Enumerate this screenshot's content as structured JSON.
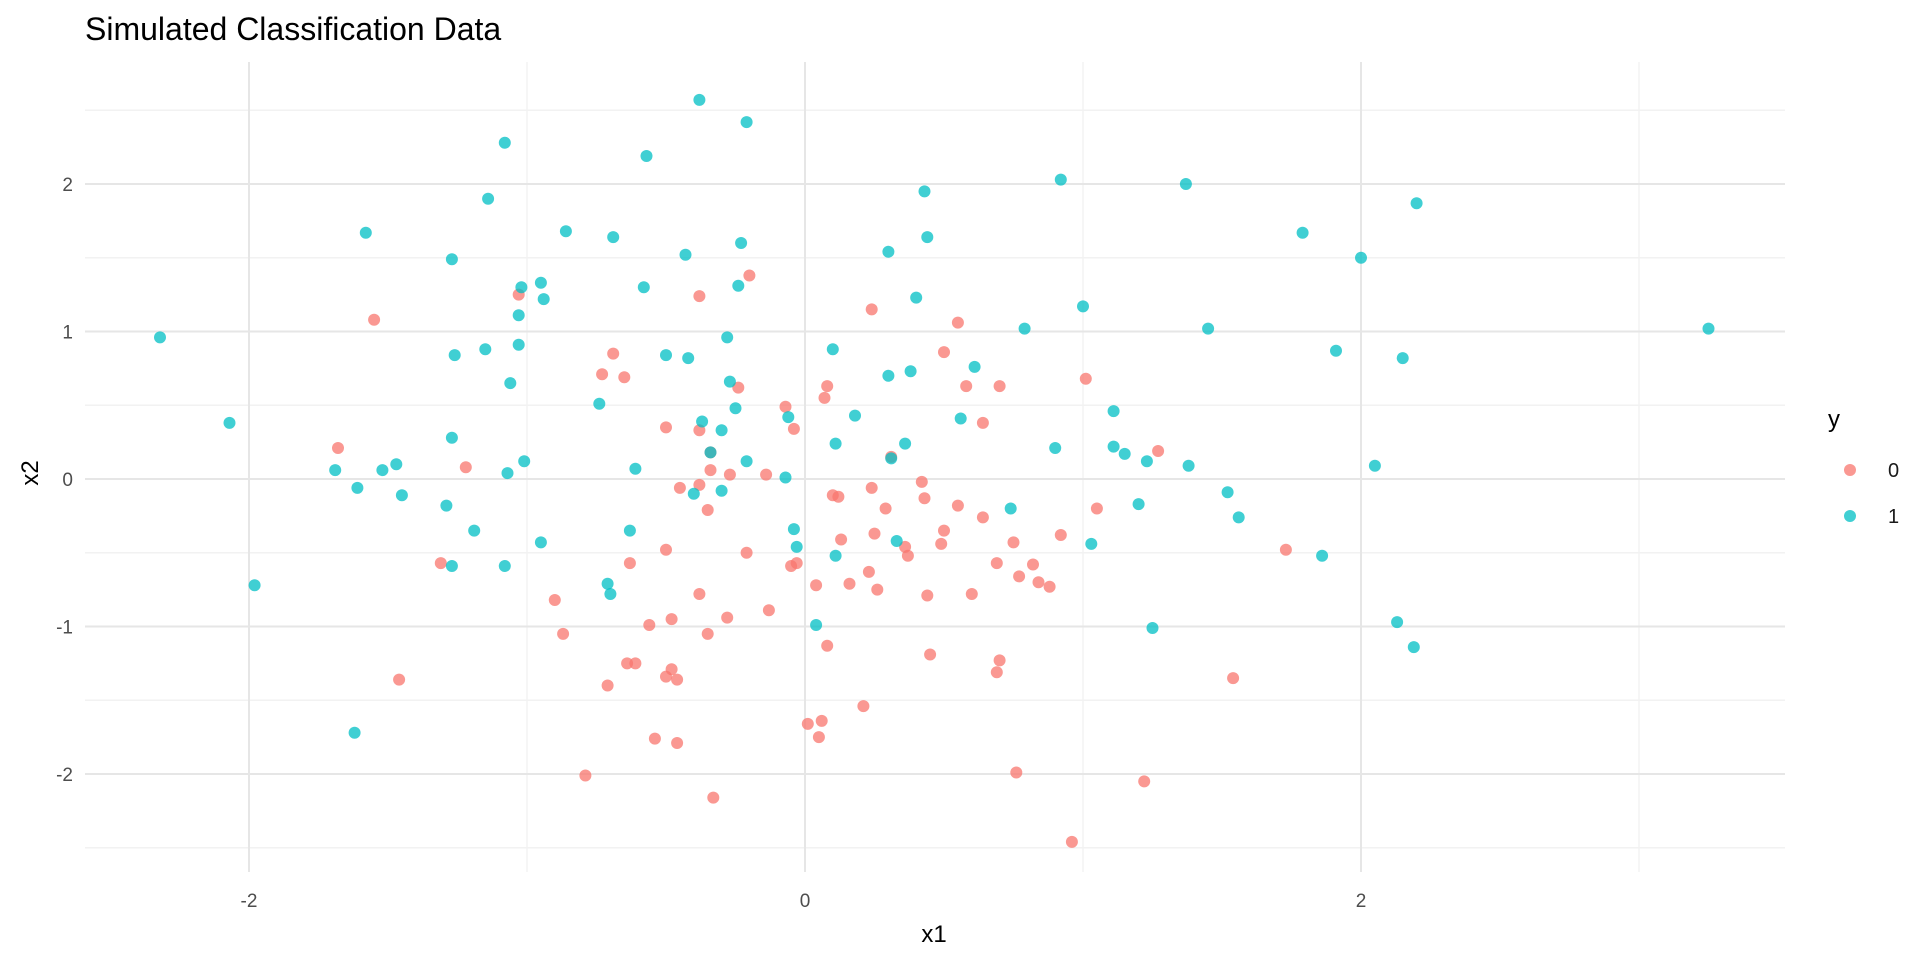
{
  "chart_data": {
    "type": "scatter",
    "title": "Simulated Classification Data",
    "xlabel": "x1",
    "ylabel": "x2",
    "xlim": [
      -2.6,
      3.5
    ],
    "ylim": [
      -2.5,
      2.6
    ],
    "x_ticks": [
      -2,
      0,
      2
    ],
    "y_ticks": [
      -2,
      -1,
      0,
      1,
      2
    ],
    "x_tick_labels": [
      "-2",
      "0",
      "2"
    ],
    "y_tick_labels": [
      "-2",
      "-1",
      "0",
      "1",
      "2"
    ],
    "grid": true,
    "legend": {
      "title": "y",
      "position": "right"
    },
    "series": [
      {
        "name": "0",
        "color": "#F8766D",
        "points": [
          [
            -1.55,
            1.08
          ],
          [
            -1.68,
            0.21
          ],
          [
            -1.22,
            0.08
          ],
          [
            -1.31,
            -0.57
          ],
          [
            -1.46,
            -1.36
          ],
          [
            -1.03,
            1.25
          ],
          [
            -0.69,
            0.85
          ],
          [
            -0.73,
            0.71
          ],
          [
            -0.65,
            0.69
          ],
          [
            -0.5,
            0.35
          ],
          [
            -0.38,
            0.33
          ],
          [
            -0.34,
            0.18
          ],
          [
            -0.38,
            -0.04
          ],
          [
            -0.45,
            -0.06
          ],
          [
            -0.34,
            0.06
          ],
          [
            -0.27,
            0.03
          ],
          [
            -0.24,
            0.62
          ],
          [
            -0.2,
            1.38
          ],
          [
            -0.38,
            1.24
          ],
          [
            -0.07,
            0.49
          ],
          [
            -0.04,
            0.34
          ],
          [
            -0.14,
            0.03
          ],
          [
            -0.35,
            -0.21
          ],
          [
            -0.5,
            -0.48
          ],
          [
            -0.63,
            -0.57
          ],
          [
            -0.21,
            -0.5
          ],
          [
            -0.05,
            -0.59
          ],
          [
            -0.03,
            -0.57
          ],
          [
            -0.38,
            -0.78
          ],
          [
            -0.28,
            -0.94
          ],
          [
            -0.13,
            -0.89
          ],
          [
            -0.48,
            -0.95
          ],
          [
            -0.56,
            -0.99
          ],
          [
            -0.35,
            -1.05
          ],
          [
            -0.48,
            -1.29
          ],
          [
            -0.64,
            -1.25
          ],
          [
            -0.61,
            -1.25
          ],
          [
            -0.5,
            -1.34
          ],
          [
            -0.46,
            -1.36
          ],
          [
            -0.71,
            -1.4
          ],
          [
            -0.54,
            -1.76
          ],
          [
            -0.46,
            -1.79
          ],
          [
            -0.79,
            -2.01
          ],
          [
            -0.33,
            -2.16
          ],
          [
            -0.9,
            -0.82
          ],
          [
            -0.87,
            -1.05
          ],
          [
            0.07,
            0.55
          ],
          [
            0.08,
            0.63
          ],
          [
            0.1,
            -0.11
          ],
          [
            0.12,
            -0.12
          ],
          [
            0.13,
            -0.41
          ],
          [
            0.16,
            -0.71
          ],
          [
            0.04,
            -0.72
          ],
          [
            0.23,
            -0.63
          ],
          [
            0.24,
            -0.06
          ],
          [
            0.25,
            -0.37
          ],
          [
            0.26,
            -0.75
          ],
          [
            0.29,
            -0.2
          ],
          [
            0.31,
            0.15
          ],
          [
            0.36,
            -0.46
          ],
          [
            0.37,
            -0.52
          ],
          [
            0.42,
            -0.02
          ],
          [
            0.43,
            -0.13
          ],
          [
            0.44,
            -0.79
          ],
          [
            0.45,
            -1.19
          ],
          [
            0.24,
            1.15
          ],
          [
            0.5,
            0.86
          ],
          [
            0.55,
            1.06
          ],
          [
            0.55,
            -0.18
          ],
          [
            0.58,
            0.63
          ],
          [
            0.6,
            -0.78
          ],
          [
            0.64,
            0.38
          ],
          [
            0.5,
            -0.35
          ],
          [
            0.49,
            -0.44
          ],
          [
            0.64,
            -0.26
          ],
          [
            0.69,
            -0.57
          ],
          [
            0.7,
            -1.23
          ],
          [
            0.69,
            -1.31
          ],
          [
            0.7,
            0.63
          ],
          [
            0.75,
            -0.43
          ],
          [
            0.77,
            -0.66
          ],
          [
            0.82,
            -0.58
          ],
          [
            0.84,
            -0.7
          ],
          [
            0.88,
            -0.73
          ],
          [
            0.92,
            -0.38
          ],
          [
            1.01,
            0.68
          ],
          [
            1.05,
            -0.2
          ],
          [
            1.27,
            0.19
          ],
          [
            1.22,
            -2.05
          ],
          [
            0.76,
            -1.99
          ],
          [
            0.96,
            -2.46
          ],
          [
            1.73,
            -0.48
          ],
          [
            1.54,
            -1.35
          ],
          [
            0.08,
            -1.13
          ],
          [
            0.01,
            -1.66
          ],
          [
            0.06,
            -1.64
          ],
          [
            0.05,
            -1.75
          ],
          [
            0.21,
            -1.54
          ]
        ]
      },
      {
        "name": "1",
        "color": "#00BFC4",
        "points": [
          [
            -2.32,
            0.96
          ],
          [
            -2.07,
            0.38
          ],
          [
            -1.98,
            -0.72
          ],
          [
            -1.69,
            0.06
          ],
          [
            -1.61,
            -0.06
          ],
          [
            -1.58,
            1.67
          ],
          [
            -1.52,
            0.06
          ],
          [
            -1.47,
            0.1
          ],
          [
            -1.45,
            -0.11
          ],
          [
            -1.62,
            -1.72
          ],
          [
            -1.27,
            1.49
          ],
          [
            -1.26,
            0.84
          ],
          [
            -1.27,
            0.28
          ],
          [
            -1.29,
            -0.18
          ],
          [
            -1.19,
            -0.35
          ],
          [
            -1.27,
            -0.59
          ],
          [
            -1.14,
            1.9
          ],
          [
            -1.15,
            0.88
          ],
          [
            -1.08,
            -0.59
          ],
          [
            -1.08,
            2.28
          ],
          [
            -1.07,
            0.04
          ],
          [
            -1.06,
            0.65
          ],
          [
            -1.03,
            1.11
          ],
          [
            -1.03,
            0.91
          ],
          [
            -1.02,
            1.3
          ],
          [
            -1.01,
            0.12
          ],
          [
            -0.95,
            1.33
          ],
          [
            -0.94,
            1.22
          ],
          [
            -0.95,
            -0.43
          ],
          [
            -0.86,
            1.68
          ],
          [
            -0.74,
            0.51
          ],
          [
            -0.69,
            1.64
          ],
          [
            -0.57,
            2.19
          ],
          [
            -0.58,
            1.3
          ],
          [
            -0.61,
            0.07
          ],
          [
            -0.63,
            -0.35
          ],
          [
            -0.71,
            -0.71
          ],
          [
            -0.7,
            -0.78
          ],
          [
            -0.5,
            0.84
          ],
          [
            -0.43,
            1.52
          ],
          [
            -0.42,
            0.82
          ],
          [
            -0.4,
            -0.1
          ],
          [
            -0.38,
            2.57
          ],
          [
            -0.37,
            0.39
          ],
          [
            -0.34,
            0.18
          ],
          [
            -0.3,
            0.33
          ],
          [
            -0.3,
            -0.08
          ],
          [
            -0.27,
            0.66
          ],
          [
            -0.28,
            0.96
          ],
          [
            -0.25,
            0.48
          ],
          [
            -0.24,
            1.31
          ],
          [
            -0.23,
            1.6
          ],
          [
            -0.21,
            0.12
          ],
          [
            -0.21,
            2.42
          ],
          [
            -0.06,
            0.42
          ],
          [
            -0.07,
            0.01
          ],
          [
            -0.04,
            -0.34
          ],
          [
            -0.03,
            -0.46
          ],
          [
            0.04,
            -0.99
          ],
          [
            0.1,
            0.88
          ],
          [
            0.11,
            0.24
          ],
          [
            0.11,
            -0.52
          ],
          [
            0.18,
            0.43
          ],
          [
            0.3,
            1.54
          ],
          [
            0.3,
            0.7
          ],
          [
            0.31,
            0.14
          ],
          [
            0.33,
            -0.42
          ],
          [
            0.36,
            0.24
          ],
          [
            0.38,
            0.73
          ],
          [
            0.4,
            1.23
          ],
          [
            0.43,
            1.95
          ],
          [
            0.44,
            1.64
          ],
          [
            0.56,
            0.41
          ],
          [
            0.61,
            0.76
          ],
          [
            0.74,
            -0.2
          ],
          [
            0.79,
            1.02
          ],
          [
            0.92,
            2.03
          ],
          [
            0.9,
            0.21
          ],
          [
            1.0,
            1.17
          ],
          [
            1.03,
            -0.44
          ],
          [
            1.11,
            0.46
          ],
          [
            1.11,
            0.22
          ],
          [
            1.15,
            0.17
          ],
          [
            1.2,
            -0.17
          ],
          [
            1.23,
            0.12
          ],
          [
            1.25,
            -1.01
          ],
          [
            1.37,
            2.0
          ],
          [
            1.38,
            0.09
          ],
          [
            1.45,
            1.02
          ],
          [
            1.52,
            -0.09
          ],
          [
            1.56,
            -0.26
          ],
          [
            1.79,
            1.67
          ],
          [
            1.86,
            -0.52
          ],
          [
            1.91,
            0.87
          ],
          [
            2.0,
            1.5
          ],
          [
            2.05,
            0.09
          ],
          [
            2.13,
            -0.97
          ],
          [
            2.15,
            0.82
          ],
          [
            2.19,
            -1.14
          ],
          [
            2.2,
            1.87
          ],
          [
            3.25,
            1.02
          ]
        ]
      }
    ]
  }
}
